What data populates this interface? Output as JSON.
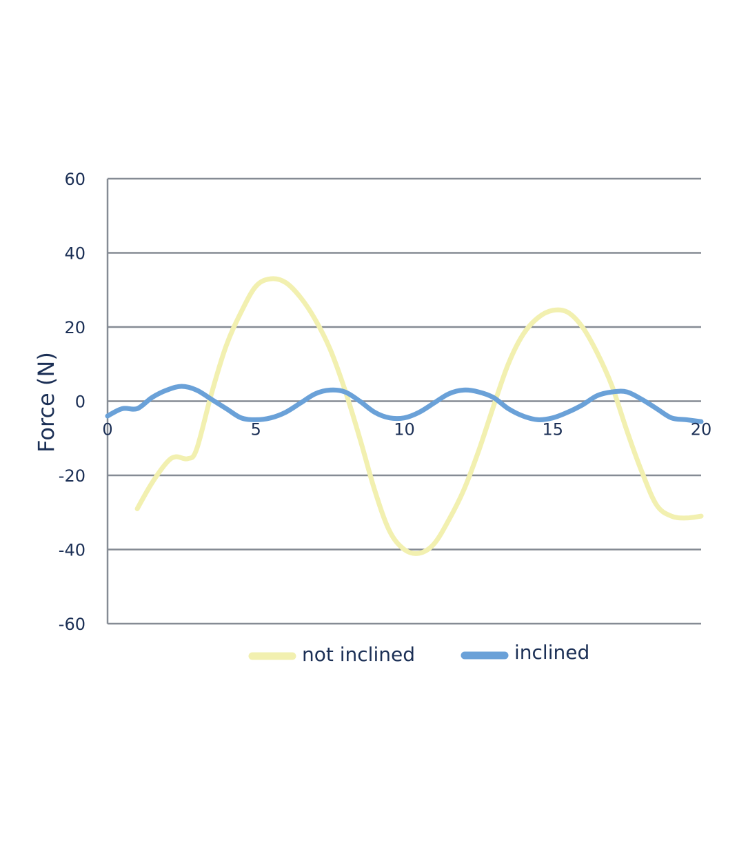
{
  "chart_data": {
    "type": "line",
    "title": "",
    "xlabel": "",
    "ylabel": "Force (N)",
    "xlim": [
      0,
      20
    ],
    "ylim": [
      -60,
      60
    ],
    "x_ticks": [
      0,
      5,
      10,
      15,
      20
    ],
    "y_ticks": [
      -60,
      -40,
      -20,
      0,
      20,
      40,
      60
    ],
    "grid": true,
    "legend_position": "bottom",
    "series": [
      {
        "name": "not inclined",
        "color": "#f2f0b0",
        "x": [
          1,
          1.5,
          2,
          2.3,
          2.7,
          3,
          3.5,
          4,
          4.5,
          5,
          5.5,
          6,
          6.5,
          7,
          7.5,
          8,
          8.5,
          9,
          9.5,
          10,
          10.5,
          11,
          11.5,
          12,
          12.5,
          13,
          13.5,
          14,
          14.5,
          15,
          15.5,
          16,
          16.5,
          17,
          17.5,
          18,
          18.5,
          19,
          19.5,
          20
        ],
        "y": [
          -29,
          -22,
          -16.5,
          -15,
          -15.5,
          -13,
          2,
          15,
          24,
          31,
          33,
          32,
          28,
          22,
          14,
          3,
          -10,
          -24,
          -35,
          -40,
          -41,
          -38.5,
          -32,
          -24,
          -13.5,
          -1.5,
          10,
          18,
          22.5,
          24.5,
          24,
          20,
          13,
          4,
          -8,
          -19,
          -28,
          -31,
          -31.5,
          -31
        ]
      },
      {
        "name": "inclined",
        "color": "#6aa1d8",
        "x": [
          0,
          0.5,
          1,
          1.5,
          2,
          2.5,
          3,
          3.5,
          4,
          4.5,
          5,
          5.5,
          6,
          6.5,
          7,
          7.5,
          8,
          8.5,
          9,
          9.5,
          10,
          10.5,
          11,
          11.5,
          12,
          12.5,
          13,
          13.5,
          14,
          14.5,
          15,
          15.5,
          16,
          16.5,
          17,
          17.5,
          18,
          18.5,
          19,
          19.5,
          20
        ],
        "y": [
          -4,
          -2,
          -2,
          1,
          3,
          4,
          3,
          0.5,
          -2,
          -4.5,
          -5,
          -4.5,
          -3,
          -0.5,
          2,
          3,
          2.5,
          0,
          -3,
          -4.5,
          -4.5,
          -3,
          -0.5,
          2,
          3,
          2.5,
          1,
          -2,
          -4,
          -5,
          -4.5,
          -3,
          -1,
          1.5,
          2.5,
          2.5,
          0.5,
          -2,
          -4.5,
          -5,
          -5.5
        ]
      }
    ]
  }
}
